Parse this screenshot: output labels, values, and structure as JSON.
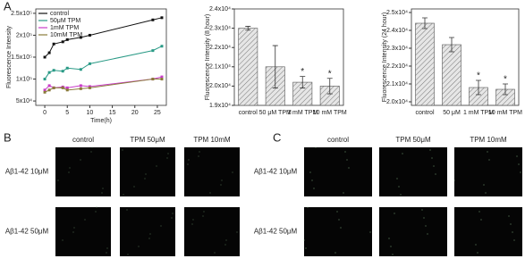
{
  "panel_labels": [
    "A",
    "B",
    "C"
  ],
  "chart_data": [
    {
      "type": "line",
      "ylabel": "Fluorescence Intensity",
      "xlabel": "Time(h)",
      "x": [
        0,
        1,
        2,
        4,
        5,
        8,
        10,
        24,
        26
      ],
      "series": [
        {
          "name": "control",
          "color": "#111111",
          "values": [
            150000,
            160000,
            180000,
            185000,
            190000,
            195000,
            200000,
            235000,
            240000
          ]
        },
        {
          "name": "50μM TPM",
          "color": "#2a9a86",
          "values": [
            100000,
            115000,
            120000,
            118000,
            125000,
            122000,
            135000,
            165000,
            175000
          ]
        },
        {
          "name": "1mM TPM",
          "color": "#c83cc8",
          "values": [
            75000,
            85000,
            80000,
            82000,
            80000,
            85000,
            83000,
            100000,
            105000
          ]
        },
        {
          "name": "10mM TPM",
          "color": "#8a7a3a",
          "values": [
            70000,
            75000,
            80000,
            80000,
            75000,
            78000,
            80000,
            100000,
            100000
          ]
        }
      ],
      "xlim": [
        -2,
        27
      ],
      "xticks": [
        0,
        5,
        10,
        15,
        20,
        25
      ],
      "ylim": [
        40000,
        260000
      ],
      "yticks": [
        {
          "value": 50000,
          "label": "5x10⁴"
        },
        {
          "value": 100000,
          "label": "1x10⁵"
        },
        {
          "value": 150000,
          "label": "1.5x10⁵"
        },
        {
          "value": 200000,
          "label": "2x10⁵"
        },
        {
          "value": 250000,
          "label": "2.5x10⁵"
        }
      ],
      "legend": "top-left"
    },
    {
      "type": "bar",
      "ylabel": "Fluorescence Intensity (8 hour)",
      "categories": [
        "control",
        "50 μM TPM",
        "1 mM TPM",
        "10 mM TPM"
      ],
      "values": [
        23000,
        21000,
        20200,
        20000
      ],
      "errors": [
        100,
        1100,
        300,
        400
      ],
      "significance": [
        null,
        null,
        "*",
        "*"
      ],
      "color": "#cfcfcf",
      "ylim": [
        19000,
        24000
      ],
      "yticks": [
        {
          "value": 19000,
          "label": "1.9x10⁴"
        },
        {
          "value": 20000,
          "label": "2.0x10⁴"
        },
        {
          "value": 21000,
          "label": "2.1x10⁴"
        },
        {
          "value": 22000,
          "label": "2.2x10⁴"
        },
        {
          "value": 23000,
          "label": "2.3x10⁴"
        },
        {
          "value": 24000,
          "label": "2.4x10⁴"
        }
      ]
    },
    {
      "type": "bar",
      "ylabel": "Fluorescence Intensity (24 hour)",
      "categories": [
        "control",
        "50 μM",
        "1 mM TPM",
        "10 mM TPM"
      ],
      "values": [
        24400,
        23200,
        20800,
        20700
      ],
      "errors": [
        300,
        400,
        400,
        300
      ],
      "significance": [
        null,
        null,
        "*",
        "*"
      ],
      "color": "#cfcfcf",
      "ylim": [
        19800,
        25200
      ],
      "yticks": [
        {
          "value": 20000,
          "label": "2.0x10⁴"
        },
        {
          "value": 21000,
          "label": "2.1x10⁴"
        },
        {
          "value": 22000,
          "label": "2.2x10⁴"
        },
        {
          "value": 23000,
          "label": "2.3x10⁴"
        },
        {
          "value": 24000,
          "label": "2.4x10⁴"
        },
        {
          "value": 25000,
          "label": "2.5x10⁴"
        }
      ]
    }
  ],
  "image_panels": [
    {
      "columns": [
        "control",
        "TPM 50μM",
        "TPM 10mM"
      ],
      "rows": [
        "Aβ1-42 10μM",
        "Aβ1-42 50μM"
      ]
    },
    {
      "columns": [
        "control",
        "TPM 50μM",
        "TPM 10mM"
      ],
      "rows": [
        "Aβ1-42 10μM",
        "Aβ1-42 50μM"
      ]
    }
  ]
}
